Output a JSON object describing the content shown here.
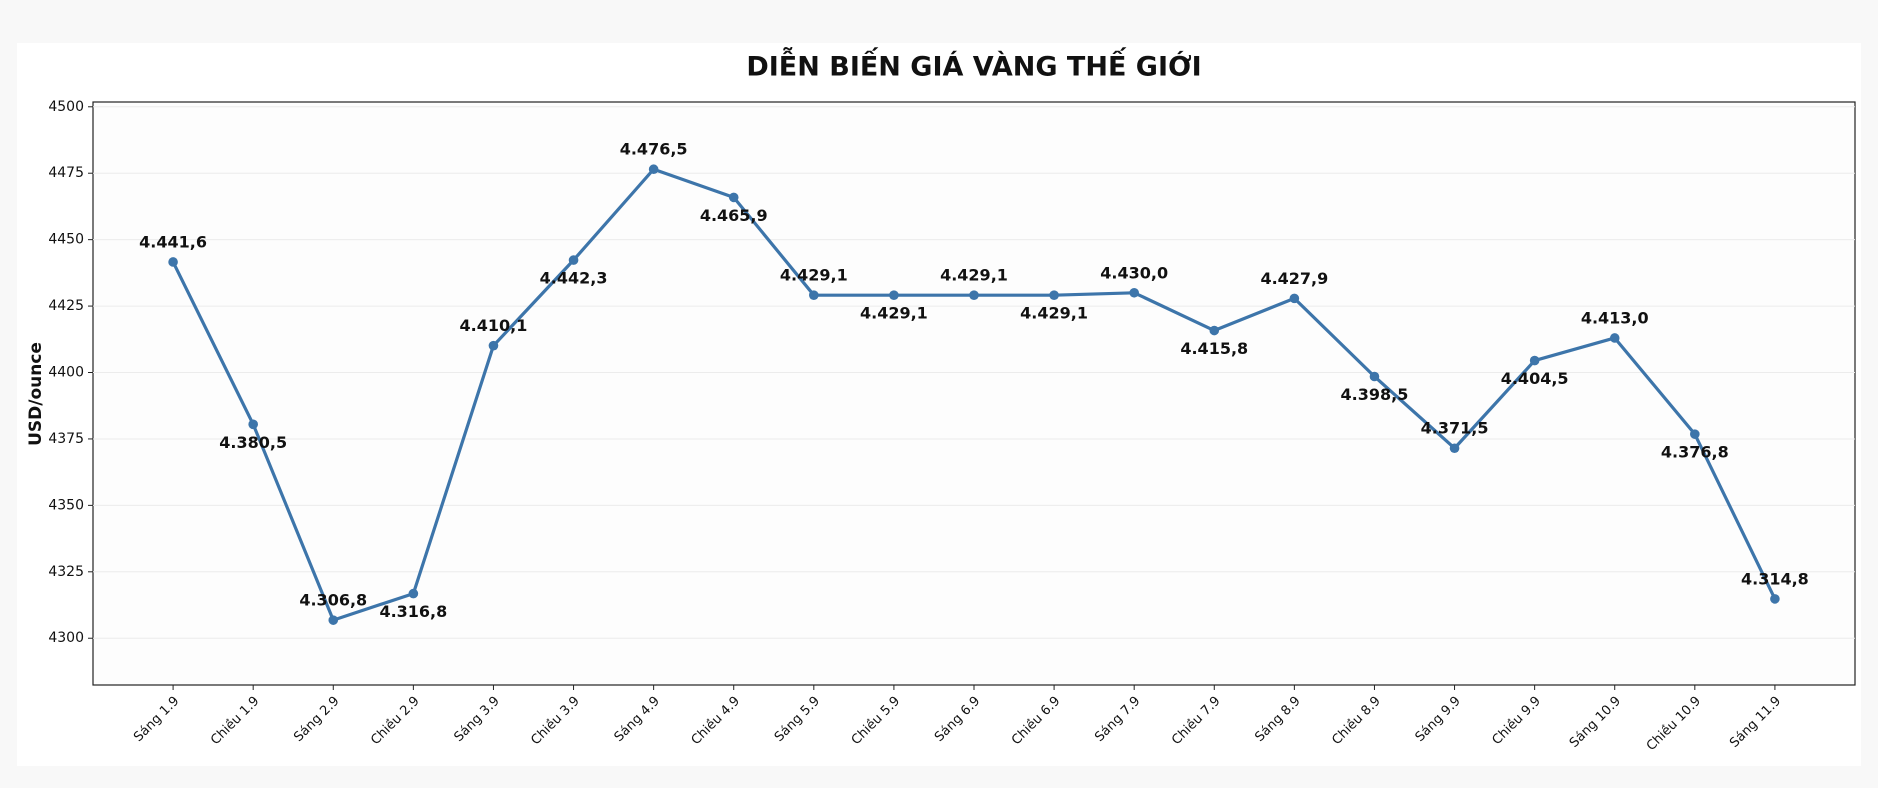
{
  "chart_data": {
    "type": "line",
    "title": "DIỄN BIẾN GIÁ VÀNG THẾ GIỚI",
    "y_label": "USD/ounce",
    "categories": [
      "Sáng 1.9",
      "Chiều 1.9",
      "Sáng 2.9",
      "Chiều 2.9",
      "Sáng 3.9",
      "Chiều 3.9",
      "Sáng 4.9",
      "Chiều 4.9",
      "Sáng 5.9",
      "Chiều 5.9",
      "Sáng 6.9",
      "Chiều 6.9",
      "Sáng 7.9",
      "Chiều 7.9",
      "Sáng 8.9",
      "Chiều 8.9",
      "Sáng 9.9",
      "Chiều 9.9",
      "Sáng 10.9",
      "Chiều 10.9",
      "Sáng 11.9"
    ],
    "values": [
      4441.6,
      4380.5,
      4306.8,
      4316.8,
      4410.1,
      4442.3,
      4476.5,
      4465.9,
      4429.1,
      4429.1,
      4429.1,
      4429.1,
      4430.0,
      4415.8,
      4427.9,
      4398.5,
      4371.5,
      4404.5,
      4413.0,
      4376.8,
      4314.8
    ],
    "value_labels": [
      "4.441,6",
      "4.380,5",
      "4.306,8",
      "4.316,8",
      "4.410,1",
      "4.442,3",
      "4.476,5",
      "4.465,9",
      "4.429,1",
      "4.429,1",
      "4.429,1",
      "4.429,1",
      "4.430,0",
      "4.415,8",
      "4.427,9",
      "4.398,5",
      "4.371,5",
      "4.404,5",
      "4.413,0",
      "4.376,8",
      "4.314,8"
    ],
    "color": "#3d75aa",
    "ylim": [
      4282.4,
      4501.8
    ],
    "yticks": [
      4300,
      4325,
      4350,
      4375,
      4400,
      4425,
      4450,
      4475,
      4500
    ],
    "grid": true
  }
}
